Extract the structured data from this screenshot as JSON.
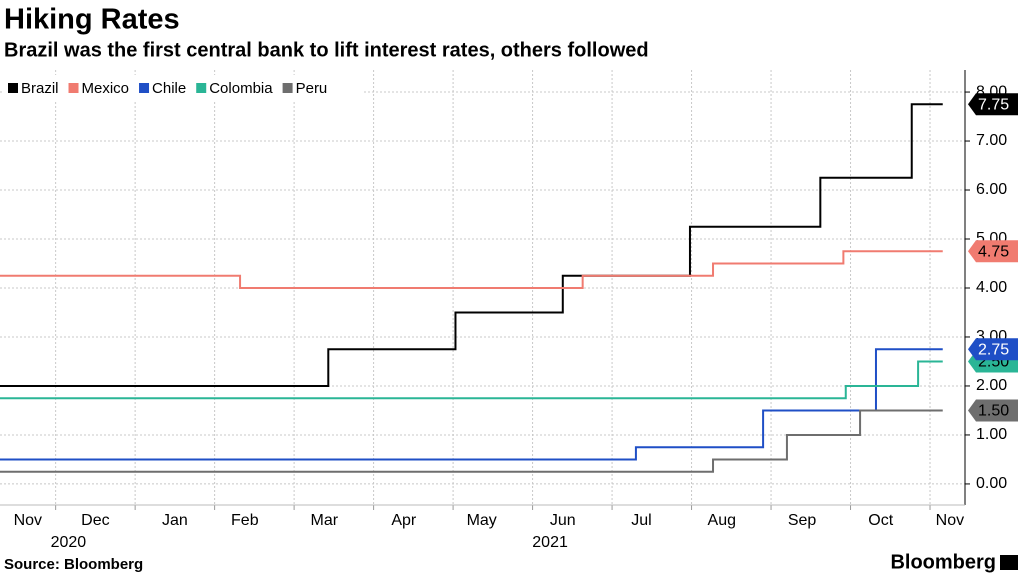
{
  "chart_data": {
    "type": "step",
    "title": "Hiking Rates",
    "subtitle": "Brazil was the first central bank to lift interest rates, others followed",
    "source": "Source: Bloomberg",
    "brand": "Bloomberg",
    "legend": "top-left",
    "grid": true,
    "xlim": [
      0.3,
      12.44
    ],
    "ylim": [
      -0.43,
      8.45
    ],
    "xgrid": [
      1,
      2,
      3,
      4,
      5,
      6,
      7,
      8,
      9,
      10,
      11,
      12
    ],
    "xticks": [
      {
        "value": 0.65,
        "label": "Nov"
      },
      {
        "value": 1.5,
        "label": "Dec"
      },
      {
        "value": 2.5,
        "label": "Jan"
      },
      {
        "value": 3.38,
        "label": "Feb"
      },
      {
        "value": 4.38,
        "label": "Mar"
      },
      {
        "value": 5.38,
        "label": "Apr"
      },
      {
        "value": 6.36,
        "label": "May"
      },
      {
        "value": 7.38,
        "label": "Jun"
      },
      {
        "value": 8.37,
        "label": "Jul"
      },
      {
        "value": 9.38,
        "label": "Aug"
      },
      {
        "value": 10.39,
        "label": "Sep"
      },
      {
        "value": 11.38,
        "label": "Oct"
      },
      {
        "value": 12.25,
        "label": "Nov"
      }
    ],
    "xticks_years": [
      {
        "value": 1.16,
        "label": "2020"
      },
      {
        "value": 7.22,
        "label": "2021"
      }
    ],
    "yticks": [
      {
        "value": 0,
        "label": "0.00"
      },
      {
        "value": 1,
        "label": "1.00"
      },
      {
        "value": 2,
        "label": "2.00"
      },
      {
        "value": 3,
        "label": "3.00"
      },
      {
        "value": 4,
        "label": "4.00"
      },
      {
        "value": 5,
        "label": "5.00"
      },
      {
        "value": 6,
        "label": "6.00"
      },
      {
        "value": 7,
        "label": "7.00"
      },
      {
        "value": 8,
        "label": "8.00"
      }
    ],
    "series": [
      {
        "name": "Brazil",
        "color": "#000000",
        "end_label": "7.75",
        "x": [
          0.3,
          4.43,
          6.03,
          7.38,
          8.98,
          10.62,
          11.77,
          12.16
        ],
        "values": [
          2.0,
          2.75,
          3.5,
          4.25,
          5.25,
          6.25,
          7.75,
          7.75
        ]
      },
      {
        "name": "Mexico",
        "color": "#f07b70",
        "end_label": "4.75",
        "x": [
          0.3,
          3.32,
          7.63,
          9.27,
          10.91,
          12.16
        ],
        "values": [
          4.25,
          4.0,
          4.25,
          4.5,
          4.75,
          4.75
        ]
      },
      {
        "name": "Chile",
        "color": "#1f4fc6",
        "end_label": "2.75",
        "x": [
          0.3,
          8.3,
          9.9,
          11.32,
          12.16
        ],
        "values": [
          0.5,
          0.75,
          1.5,
          2.75,
          2.75
        ]
      },
      {
        "name": "Colombia",
        "color": "#2ab596",
        "end_label": "2.50",
        "x": [
          0.3,
          10.94,
          11.85,
          12.16
        ],
        "values": [
          1.75,
          2.0,
          2.5,
          2.5
        ]
      },
      {
        "name": "Peru",
        "color": "#6e6e6e",
        "end_label": "1.50",
        "x": [
          0.3,
          9.27,
          10.2,
          11.12,
          12.16
        ],
        "values": [
          0.25,
          0.5,
          1.0,
          1.5,
          1.5
        ]
      }
    ]
  }
}
